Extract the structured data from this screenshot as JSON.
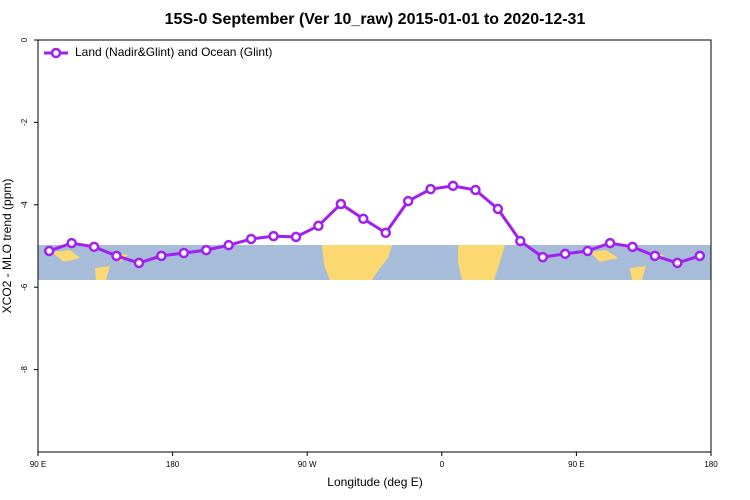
{
  "chart_data": {
    "type": "line",
    "title": "15S-0 September (Ver 10_raw)   2015-01-01 to 2020-12-31",
    "x_label": "Longitude (deg E)",
    "y_label": "XCO2 - MLO trend (ppm)",
    "x": [
      97.5,
      112.5,
      127.5,
      142.5,
      157.5,
      172.5,
      187.5,
      202.5,
      217.5,
      232.5,
      247.5,
      262.5,
      277.5,
      292.5,
      307.5,
      322.5,
      337.5,
      352.5,
      367.5,
      382.5,
      397.5,
      412.5,
      427.5,
      442.5,
      457.5,
      472.5,
      487.5,
      502.5,
      517.5,
      532.5
    ],
    "series": [
      {
        "name": "Land (Nadir&Glint) and Ocean (Glint)",
        "color": "#a020f0",
        "values": [
          -5.12,
          -4.93,
          -5.02,
          -5.24,
          -5.41,
          -5.24,
          -5.17,
          -5.1,
          -4.98,
          -4.83,
          -4.76,
          -4.78,
          -4.51,
          -3.98,
          -4.34,
          -4.68,
          -3.91,
          -3.62,
          -3.54,
          -3.64,
          -4.1,
          -4.88,
          -5.27,
          -5.19,
          -5.12,
          -4.93,
          -5.02,
          -5.24,
          -5.41,
          -5.24
        ]
      }
    ],
    "xlim": [
      90,
      540
    ],
    "xticks": [
      {
        "value": 90,
        "label": "90 E"
      },
      {
        "value": 180,
        "label": "180"
      },
      {
        "value": 270,
        "label": "90 W"
      },
      {
        "value": 360,
        "label": "0"
      },
      {
        "value": 450,
        "label": "90 E"
      },
      {
        "value": 540,
        "label": "180"
      }
    ],
    "ylim": [
      -10,
      0
    ],
    "yticks": [
      0,
      -2,
      -4,
      -6,
      -8
    ],
    "legend": "top-left"
  }
}
